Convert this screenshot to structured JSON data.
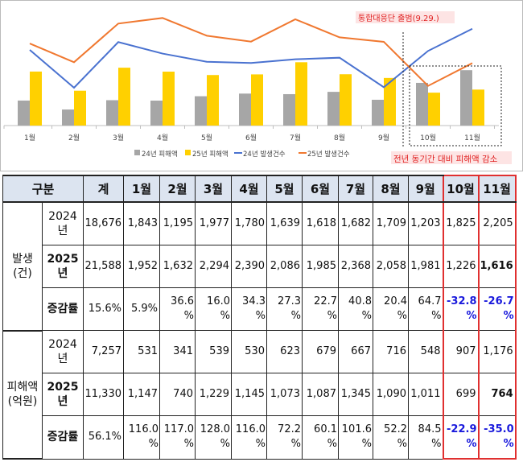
{
  "chart_data": {
    "type": "bar+line",
    "categories": [
      "1월",
      "2월",
      "3월",
      "4월",
      "5월",
      "6월",
      "7월",
      "8월",
      "9월",
      "10월",
      "11월"
    ],
    "series": [
      {
        "name": "24년 피해액",
        "type": "bar",
        "color": "#a6a6a6",
        "values": [
          531,
          341,
          539,
          530,
          623,
          679,
          667,
          716,
          548,
          907,
          1176
        ]
      },
      {
        "name": "25년 피해액",
        "type": "bar",
        "color": "#ffd000",
        "values": [
          1147,
          740,
          1229,
          1145,
          1073,
          1087,
          1345,
          1090,
          1011,
          699,
          764
        ]
      },
      {
        "name": "24년 발생건수",
        "type": "line",
        "color": "#4a72d0",
        "values": [
          1843,
          1195,
          1977,
          1780,
          1639,
          1618,
          1682,
          1709,
          1203,
          1825,
          2205
        ]
      },
      {
        "name": "25년 발생건수",
        "type": "line",
        "color": "#f07830",
        "values": [
          1952,
          1632,
          2294,
          2390,
          2086,
          1985,
          2368,
          2058,
          1981,
          1226,
          1616
        ]
      }
    ],
    "annotations": [
      "통합대응단 출범(9.29.)",
      "전년 동기간 대비 피해액 감소"
    ],
    "legend": "bottom",
    "grid": false
  },
  "table": {
    "headers": [
      "구분",
      "계",
      "1월",
      "2월",
      "3월",
      "4월",
      "5월",
      "6월",
      "7월",
      "8월",
      "9월",
      "10월",
      "11월"
    ],
    "groups": [
      {
        "label": "발생\n(건)",
        "rows": [
          {
            "label": "2024\n년",
            "values": [
              "18,676",
              "1,843",
              "1,195",
              "1,977",
              "1,780",
              "1,639",
              "1,618",
              "1,682",
              "1,709",
              "1,203",
              "1,825",
              "2,205"
            ]
          },
          {
            "label": "2025\n년",
            "values": [
              "21,588",
              "1,952",
              "1,632",
              "2,294",
              "2,390",
              "2,086",
              "1,985",
              "2,368",
              "2,058",
              "1,981",
              "1,226",
              "1,616"
            ]
          },
          {
            "label": "증감률",
            "values": [
              "15.6%",
              "5.9%",
              "36.6\n%",
              "16.0\n%",
              "34.3\n%",
              "27.3\n%",
              "22.7\n%",
              "40.8\n%",
              "20.4\n%",
              "64.7\n%",
              "-32.8\n%",
              "-26.7\n%"
            ]
          }
        ]
      },
      {
        "label": "피해액\n(억원)",
        "rows": [
          {
            "label": "2024\n년",
            "values": [
              "7,257",
              "531",
              "341",
              "539",
              "530",
              "623",
              "679",
              "667",
              "716",
              "548",
              "907",
              "1,176"
            ]
          },
          {
            "label": "2025\n년",
            "values": [
              "11,330",
              "1,147",
              "740",
              "1,229",
              "1,145",
              "1,073",
              "1,087",
              "1,345",
              "1,090",
              "1,011",
              "699",
              "764"
            ]
          },
          {
            "label": "증감률",
            "values": [
              "56.1%",
              "116.0\n%",
              "117.0\n%",
              "128.0\n%",
              "116.0\n%",
              "72.2\n%",
              "60.1\n%",
              "101.6\n%",
              "52.2\n%",
              "84.5\n%",
              "-22.9\n%",
              "-35.0\n%"
            ]
          }
        ]
      }
    ]
  }
}
